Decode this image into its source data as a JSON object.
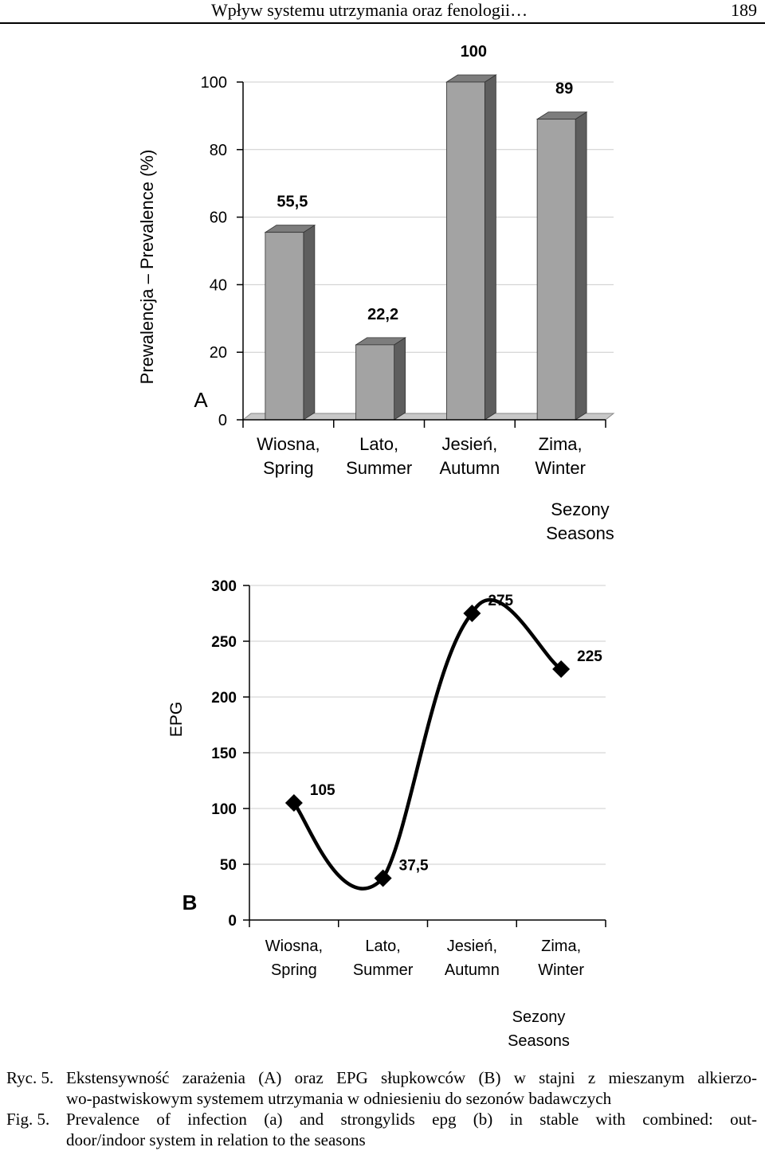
{
  "header": {
    "running_title": "Wpływ systemu utrzymania oraz fenologii…",
    "page_number": "189"
  },
  "chart_data": [
    {
      "type": "bar",
      "panel_label": "A",
      "ylabel": "Prewalencja – Prevalence (%)",
      "xlabel": [
        "Sezony",
        "Seasons"
      ],
      "categories": [
        [
          "Wiosna,",
          "Spring"
        ],
        [
          "Lato,",
          "Summer"
        ],
        [
          "Jesień,",
          "Autumn"
        ],
        [
          "Zima,",
          "Winter"
        ]
      ],
      "values": [
        55.5,
        22.2,
        100,
        89
      ],
      "value_labels": [
        "55,5",
        "22,2",
        "100",
        "89"
      ],
      "ylim": [
        0,
        100
      ],
      "yticks": [
        0,
        20,
        40,
        60,
        80,
        100
      ],
      "ytick_labels": [
        "0",
        "20",
        "40",
        "60",
        "80",
        "100"
      ],
      "grid": true,
      "colors": {
        "bar_front": "#a3a3a3",
        "bar_side": "#5e5e5e",
        "bar_top": "#7d7d7d",
        "grid": "#cccccc"
      }
    },
    {
      "type": "line",
      "panel_label": "B",
      "ylabel": "EPG",
      "xlabel": [
        "Sezony",
        "Seasons"
      ],
      "categories": [
        [
          "Wiosna,",
          "Spring"
        ],
        [
          "Lato,",
          "Summer"
        ],
        [
          "Jesień,",
          "Autumn"
        ],
        [
          "Zima,",
          "Winter"
        ]
      ],
      "values": [
        105,
        37.5,
        275,
        225
      ],
      "value_labels": [
        "105",
        "37,5",
        "275",
        "225"
      ],
      "ylim": [
        0,
        300
      ],
      "yticks": [
        0,
        50,
        100,
        150,
        200,
        250,
        300
      ],
      "ytick_labels": [
        "0",
        "50",
        "100",
        "150",
        "200",
        "250",
        "300"
      ],
      "smoothed": true,
      "marker": "diamond",
      "grid": true,
      "colors": {
        "line": "#000000",
        "marker": "#000000",
        "grid": "#cccccc"
      }
    }
  ],
  "caption": {
    "pl_label": "Ryc. 5.",
    "pl_line1": "Ekstensywność zarażenia (A) oraz EPG słupkowców (B) w stajni z mieszanym alkierzo-",
    "pl_line2": "wo-pastwiskowym systemem utrzymania w odniesieniu do sezonów badawczych",
    "en_label": "Fig. 5.",
    "en_line1": "Prevalence of infection (a) and strongylids epg (b) in stable with combined: out-",
    "en_line2": "door/indoor system in relation to the seasons"
  }
}
